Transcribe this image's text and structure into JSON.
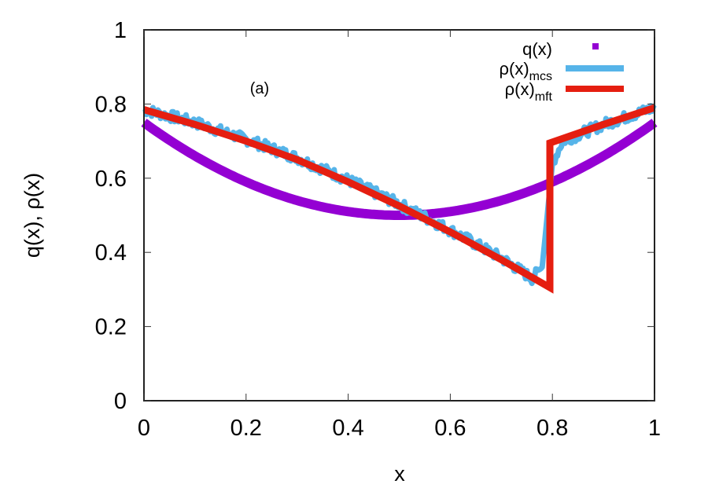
{
  "chart_data": {
    "type": "line",
    "title": "",
    "annotation": "(a)",
    "xlabel": "x",
    "ylabel": "q(x), ρ(x)",
    "xlim": [
      0,
      1
    ],
    "ylim": [
      0,
      1
    ],
    "xticks": [
      "0",
      "0.2",
      "0.4",
      "0.6",
      "0.8",
      "1"
    ],
    "yticks": [
      "0",
      "0.2",
      "0.4",
      "0.6",
      "0.8",
      "1"
    ],
    "grid": false,
    "legend_position": "top-right (inside)",
    "series": [
      {
        "name": "q(x)",
        "label_main": "q(x)",
        "label_sub": "",
        "style": "points (thick dotted curve)",
        "color": "#9400d3",
        "x": [
          0,
          0.1,
          0.2,
          0.3,
          0.4,
          0.5,
          0.6,
          0.7,
          0.8,
          0.9,
          1.0
        ],
        "y": [
          0.75,
          0.66,
          0.59,
          0.54,
          0.51,
          0.5,
          0.51,
          0.54,
          0.59,
          0.66,
          0.75
        ]
      },
      {
        "name": "ρ(x)_mcs",
        "label_main": "ρ(x)",
        "label_sub": "mcs",
        "style": "noisy line",
        "color": "#56b4e9",
        "x": [
          0,
          0.1,
          0.2,
          0.3,
          0.4,
          0.5,
          0.6,
          0.7,
          0.76,
          0.78,
          0.79,
          0.8,
          0.82,
          0.9,
          1.0
        ],
        "y": [
          0.785,
          0.75,
          0.705,
          0.655,
          0.595,
          0.53,
          0.46,
          0.385,
          0.33,
          0.36,
          0.5,
          0.64,
          0.7,
          0.745,
          0.79
        ]
      },
      {
        "name": "ρ(x)_mft",
        "label_main": "ρ(x)",
        "label_sub": "mft",
        "style": "line",
        "color": "#e51e10",
        "x": [
          0,
          0.1,
          0.2,
          0.3,
          0.4,
          0.5,
          0.6,
          0.7,
          0.795,
          0.795,
          0.9,
          1.0
        ],
        "y": [
          0.785,
          0.745,
          0.7,
          0.65,
          0.59,
          0.525,
          0.455,
          0.38,
          0.305,
          0.695,
          0.745,
          0.79
        ]
      }
    ]
  }
}
